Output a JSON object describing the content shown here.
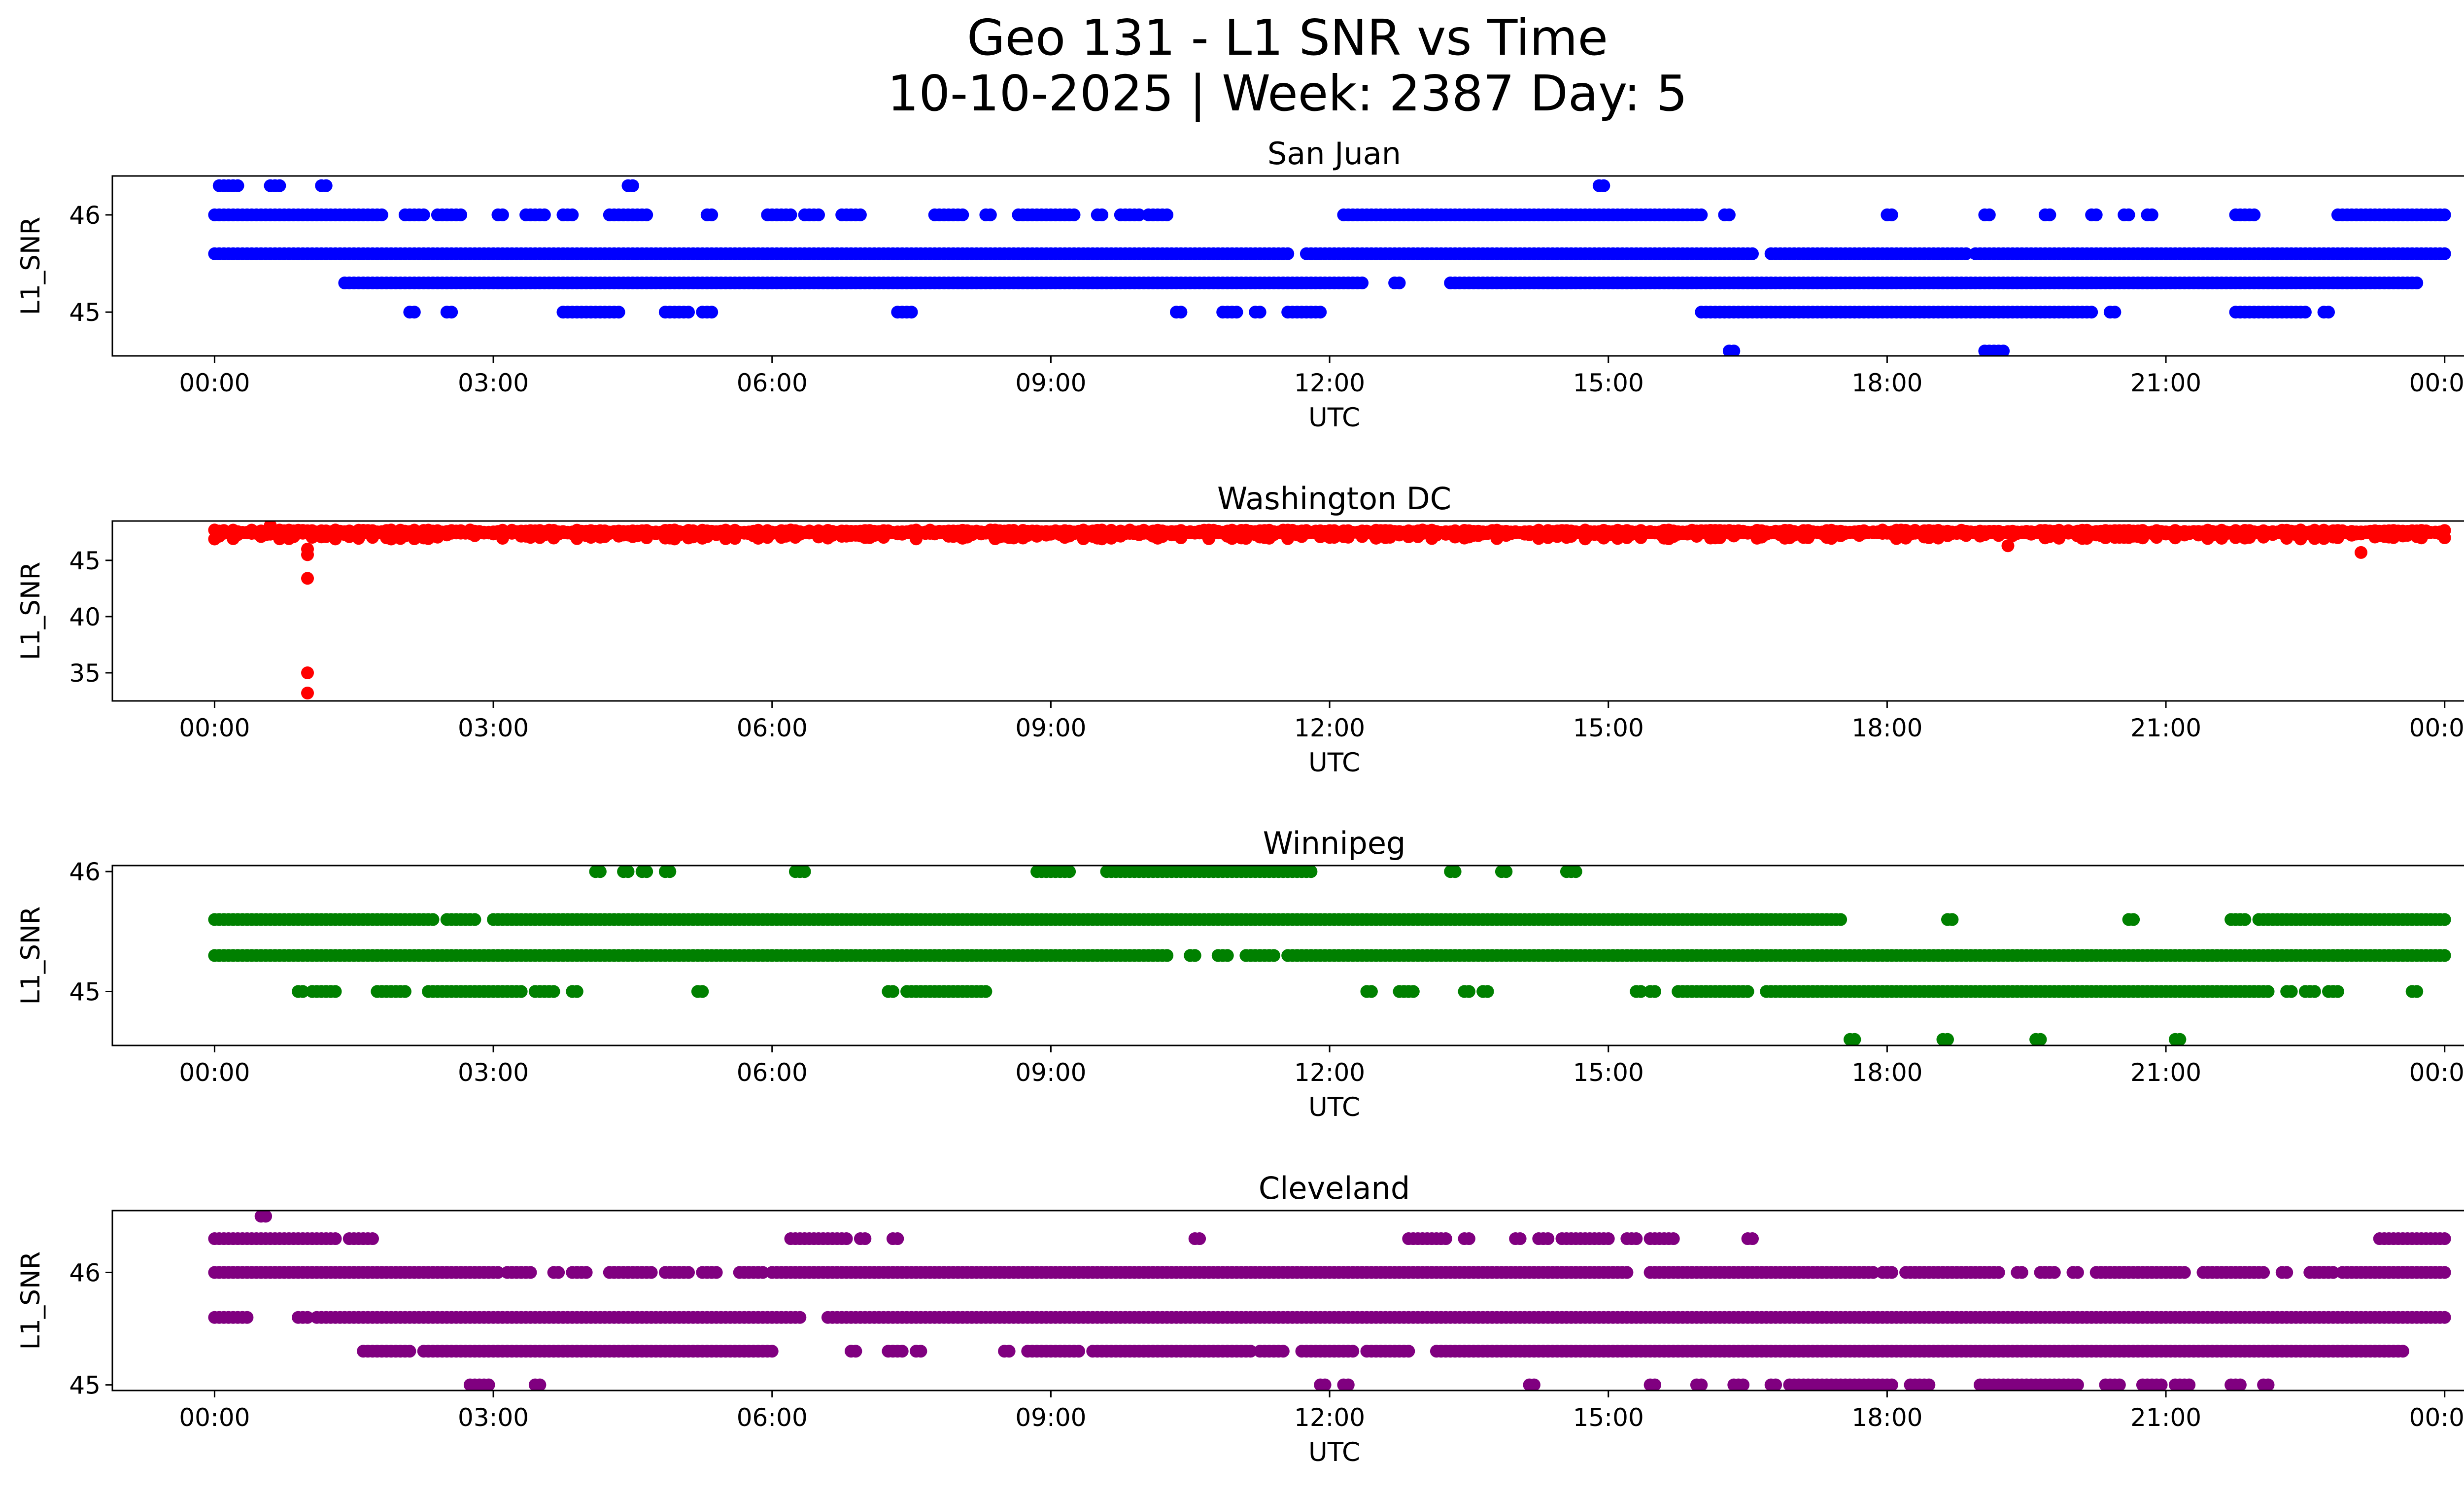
{
  "title": "Geo 131 - L1 SNR vs Time",
  "subtitle": "10-10-2025 | Week: 2387 Day: 5",
  "chart_data": [
    {
      "type": "scatter",
      "title": "San Juan",
      "xlabel": "UTC",
      "ylabel": "L1_SNR",
      "color": "#0000ff",
      "xlim": [
        -1.1,
        25.2
      ],
      "ylim": [
        44.55,
        46.4
      ],
      "xticks": [
        "00:00",
        "03:00",
        "06:00",
        "09:00",
        "12:00",
        "15:00",
        "18:00",
        "21:00",
        "00:00"
      ],
      "yticks": [
        45,
        46
      ],
      "levels": [
        {
          "y": 46.3,
          "segments": [
            [
              0.05,
              0.25
            ],
            [
              0.6,
              0.7
            ],
            [
              1.15,
              1.2
            ],
            [
              4.45,
              4.5
            ],
            [
              14.9,
              14.95
            ]
          ]
        },
        {
          "y": 46.0,
          "segments": [
            [
              0.0,
              1.8
            ],
            [
              2.05,
              2.25
            ],
            [
              2.4,
              2.65
            ],
            [
              3.05,
              3.1
            ],
            [
              3.35,
              3.55
            ],
            [
              3.75,
              3.85
            ],
            [
              4.25,
              4.65
            ],
            [
              5.3,
              5.35
            ],
            [
              5.95,
              6.2
            ],
            [
              6.35,
              6.5
            ],
            [
              6.75,
              6.95
            ],
            [
              7.75,
              8.05
            ],
            [
              8.3,
              8.35
            ],
            [
              8.65,
              9.25
            ],
            [
              9.5,
              9.55
            ],
            [
              9.75,
              9.95
            ],
            [
              10.05,
              10.25
            ],
            [
              12.15,
              16.0
            ],
            [
              16.25,
              16.3
            ],
            [
              18.0,
              18.05
            ],
            [
              19.05,
              19.1
            ],
            [
              19.7,
              19.75
            ],
            [
              20.2,
              20.25
            ],
            [
              20.55,
              20.6
            ],
            [
              20.8,
              20.85
            ],
            [
              21.75,
              21.95
            ],
            [
              22.85,
              24.0
            ]
          ]
        },
        {
          "y": 45.6,
          "segments": [
            [
              0.0,
              11.55
            ],
            [
              11.75,
              16.55
            ],
            [
              16.75,
              18.85
            ],
            [
              18.95,
              24.0
            ]
          ]
        },
        {
          "y": 45.3,
          "segments": [
            [
              1.4,
              4.45
            ],
            [
              4.5,
              12.35
            ],
            [
              12.7,
              12.75
            ],
            [
              13.3,
              23.7
            ]
          ]
        },
        {
          "y": 45.0,
          "segments": [
            [
              2.1,
              2.15
            ],
            [
              2.5,
              2.55
            ],
            [
              3.75,
              4.35
            ],
            [
              4.85,
              5.1
            ],
            [
              5.25,
              5.35
            ],
            [
              7.35,
              7.5
            ],
            [
              10.35,
              10.4
            ],
            [
              10.85,
              11.0
            ],
            [
              11.2,
              11.25
            ],
            [
              11.55,
              11.9
            ],
            [
              16.0,
              20.2
            ],
            [
              20.4,
              20.45
            ],
            [
              21.75,
              22.5
            ],
            [
              22.7,
              22.75
            ]
          ]
        },
        {
          "y": 44.6,
          "segments": [
            [
              16.3,
              16.35
            ],
            [
              19.05,
              19.25
            ]
          ]
        }
      ]
    },
    {
      "type": "scatter",
      "title": "Washington DC",
      "xlabel": "UTC",
      "ylabel": "L1_SNR",
      "color": "#ff0000",
      "xlim": [
        -1.1,
        25.2
      ],
      "ylim": [
        32.5,
        48.5
      ],
      "xticks": [
        "00:00",
        "03:00",
        "06:00",
        "09:00",
        "12:00",
        "15:00",
        "18:00",
        "21:00",
        "00:00"
      ],
      "yticks": [
        35,
        40,
        45
      ],
      "bands": [
        {
          "y_upper": 47.7,
          "y_lower": 46.9,
          "segments": [
            [
              0.0,
              24.0
            ]
          ]
        }
      ],
      "outliers": [
        {
          "x": 0.6,
          "y": 48.1
        },
        {
          "x": 1.0,
          "y": 46.0
        },
        {
          "x": 1.0,
          "y": 45.5
        },
        {
          "x": 1.0,
          "y": 43.4
        },
        {
          "x": 1.0,
          "y": 35.0
        },
        {
          "x": 1.0,
          "y": 33.2
        },
        {
          "x": 19.3,
          "y": 46.3
        },
        {
          "x": 23.1,
          "y": 45.7
        }
      ]
    },
    {
      "type": "scatter",
      "title": "Winnipeg",
      "xlabel": "UTC",
      "ylabel": "L1_SNR",
      "color": "#008000",
      "xlim": [
        -1.1,
        25.2
      ],
      "ylim": [
        44.55,
        46.05
      ],
      "xticks": [
        "00:00",
        "03:00",
        "06:00",
        "09:00",
        "12:00",
        "15:00",
        "18:00",
        "21:00",
        "00:00"
      ],
      "yticks": [
        45,
        46
      ],
      "levels": [
        {
          "y": 46.0,
          "segments": [
            [
              4.1,
              4.15
            ],
            [
              4.4,
              4.45
            ],
            [
              4.6,
              4.65
            ],
            [
              4.85,
              4.9
            ],
            [
              6.25,
              6.35
            ],
            [
              8.85,
              9.2
            ],
            [
              9.6,
              11.7
            ],
            [
              11.75,
              11.8
            ],
            [
              13.3,
              13.35
            ],
            [
              13.85,
              13.9
            ],
            [
              14.55,
              14.65
            ]
          ]
        },
        {
          "y": 45.6,
          "segments": [
            [
              0.0,
              2.35
            ],
            [
              2.5,
              2.8
            ],
            [
              3.0,
              17.5
            ],
            [
              18.65,
              18.7
            ],
            [
              20.6,
              20.65
            ],
            [
              21.7,
              21.85
            ],
            [
              22.0,
              24.0
            ]
          ]
        },
        {
          "y": 45.3,
          "segments": [
            [
              0.0,
              10.25
            ],
            [
              10.5,
              10.55
            ],
            [
              10.8,
              10.9
            ],
            [
              11.1,
              11.4
            ],
            [
              11.55,
              24.0
            ]
          ]
        },
        {
          "y": 45.0,
          "segments": [
            [
              0.9,
              0.95
            ],
            [
              1.05,
              1.3
            ],
            [
              1.75,
              2.05
            ],
            [
              2.3,
              3.3
            ],
            [
              3.45,
              3.65
            ],
            [
              3.85,
              3.9
            ],
            [
              5.2,
              5.25
            ],
            [
              7.25,
              7.3
            ],
            [
              7.45,
              8.3
            ],
            [
              12.4,
              12.45
            ],
            [
              12.75,
              12.9
            ],
            [
              13.45,
              13.5
            ],
            [
              13.65,
              13.7
            ],
            [
              15.3,
              15.35
            ],
            [
              15.45,
              15.5
            ],
            [
              15.75,
              16.5
            ],
            [
              16.7,
              22.1
            ],
            [
              22.3,
              22.35
            ],
            [
              22.5,
              22.6
            ],
            [
              22.75,
              22.85
            ],
            [
              23.65,
              23.7
            ]
          ]
        },
        {
          "y": 44.6,
          "segments": [
            [
              17.6,
              17.65
            ],
            [
              18.6,
              18.65
            ],
            [
              19.6,
              19.65
            ],
            [
              21.1,
              21.15
            ]
          ]
        }
      ]
    },
    {
      "type": "scatter",
      "title": "Cleveland",
      "xlabel": "UTC",
      "ylabel": "L1_SNR",
      "color": "#800080",
      "xlim": [
        -1.1,
        25.2
      ],
      "ylim": [
        44.95,
        46.55
      ],
      "xticks": [
        "00:00",
        "03:00",
        "06:00",
        "09:00",
        "12:00",
        "15:00",
        "18:00",
        "21:00",
        "00:00"
      ],
      "yticks": [
        45,
        46
      ],
      "levels": [
        {
          "y": 46.5,
          "segments": [
            [
              0.5,
              0.55
            ]
          ]
        },
        {
          "y": 46.3,
          "segments": [
            [
              0.0,
              1.3
            ],
            [
              1.45,
              1.7
            ],
            [
              6.2,
              6.8
            ],
            [
              6.95,
              7.0
            ],
            [
              7.3,
              7.35
            ],
            [
              10.55,
              10.6
            ],
            [
              12.85,
              13.25
            ],
            [
              13.45,
              13.5
            ],
            [
              14.0,
              14.05
            ],
            [
              14.25,
              14.35
            ],
            [
              14.5,
              15.0
            ],
            [
              15.2,
              15.3
            ],
            [
              15.45,
              15.7
            ],
            [
              16.5,
              16.55
            ],
            [
              23.3,
              24.0
            ]
          ]
        },
        {
          "y": 46.0,
          "segments": [
            [
              0.0,
              3.05
            ],
            [
              3.15,
              3.4
            ],
            [
              3.65,
              3.7
            ],
            [
              3.85,
              4.0
            ],
            [
              4.25,
              4.7
            ],
            [
              4.85,
              5.1
            ],
            [
              5.25,
              5.4
            ],
            [
              5.65,
              5.9
            ],
            [
              6.0,
              15.2
            ],
            [
              15.45,
              17.85
            ],
            [
              17.95,
              18.05
            ],
            [
              18.2,
              19.2
            ],
            [
              19.4,
              19.45
            ],
            [
              19.65,
              19.8
            ],
            [
              20.0,
              20.05
            ],
            [
              20.25,
              21.2
            ],
            [
              21.4,
              22.05
            ],
            [
              22.25,
              22.3
            ],
            [
              22.55,
              22.8
            ],
            [
              22.9,
              24.0
            ]
          ]
        },
        {
          "y": 45.6,
          "segments": [
            [
              0.0,
              0.35
            ],
            [
              0.9,
              1.0
            ],
            [
              1.1,
              6.3
            ],
            [
              6.6,
              24.0
            ]
          ]
        },
        {
          "y": 45.3,
          "segments": [
            [
              1.6,
              2.1
            ],
            [
              2.25,
              6.0
            ],
            [
              6.85,
              6.9
            ],
            [
              7.25,
              7.4
            ],
            [
              7.55,
              7.6
            ],
            [
              8.5,
              8.55
            ],
            [
              8.75,
              9.3
            ],
            [
              9.45,
              10.55
            ],
            [
              10.6,
              11.15
            ],
            [
              11.25,
              11.5
            ],
            [
              11.7,
              12.25
            ],
            [
              12.4,
              12.85
            ],
            [
              13.15,
              23.55
            ]
          ]
        },
        {
          "y": 45.0,
          "segments": [
            [
              2.75,
              2.95
            ],
            [
              3.45,
              3.5
            ],
            [
              11.9,
              11.95
            ],
            [
              12.15,
              12.2
            ],
            [
              14.15,
              14.2
            ],
            [
              15.45,
              15.5
            ],
            [
              15.95,
              16.0
            ],
            [
              16.35,
              16.45
            ],
            [
              16.75,
              16.8
            ],
            [
              16.95,
              18.05
            ],
            [
              18.25,
              18.45
            ],
            [
              19.0,
              20.05
            ],
            [
              20.35,
              20.5
            ],
            [
              20.75,
              20.95
            ],
            [
              21.1,
              21.25
            ],
            [
              21.7,
              21.8
            ],
            [
              22.05,
              22.1
            ]
          ]
        }
      ]
    }
  ]
}
